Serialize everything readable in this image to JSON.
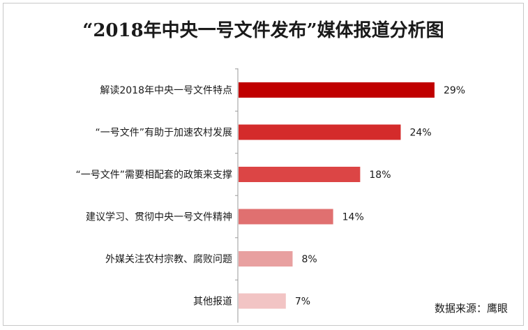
{
  "chart_data": {
    "type": "bar",
    "orientation": "horizontal",
    "title": "“2018年中央一号文件发布”媒体报道分析图",
    "categories": [
      "解读2018年中央一号文件特点",
      "“一号文件”有助于加速农村发展",
      "“一号文件”需要相配套的政策来支撑",
      "建议学习、贯彻中央一号文件精神",
      "外媒关注农村宗教、腐败问题",
      "其他报道"
    ],
    "values": [
      29,
      24,
      18,
      14,
      8,
      7
    ],
    "value_labels": [
      "29%",
      "24%",
      "18%",
      "14%",
      "8%",
      "7%"
    ],
    "xlim": [
      0,
      32
    ],
    "colors": [
      "#c00000",
      "#d42b2b",
      "#dc4545",
      "#e07070",
      "#e8a0a0",
      "#f2c4c4"
    ],
    "grid": false,
    "legend": "none"
  },
  "source": "数据来源：鹰眼"
}
